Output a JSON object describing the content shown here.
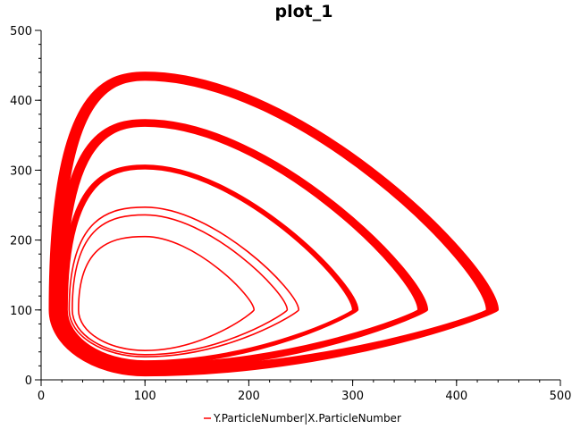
{
  "chart_data": {
    "type": "line",
    "title": "plot_1",
    "xlabel": "",
    "ylabel": "",
    "xlim": [
      0,
      500
    ],
    "ylim": [
      0,
      500
    ],
    "xticks": [
      0,
      100,
      200,
      300,
      400,
      500
    ],
    "yticks": [
      0,
      100,
      200,
      300,
      400,
      500
    ],
    "grid": false,
    "legend_position": "bottom",
    "colors": {
      "series": "#ff0000",
      "axis": "#000000"
    },
    "series": [
      {
        "name": "Y.ParticleNumber|X.ParticleNumber",
        "color": "#ff0000",
        "orbits": [
          {
            "center": [
              100,
              100
            ],
            "x_min": 36,
            "x_max": 205,
            "y_min": 42,
            "y_max": 205,
            "band": 1
          },
          {
            "center": [
              100,
              100
            ],
            "x_min": 30,
            "x_max": 237,
            "y_min": 36,
            "y_max": 236,
            "band": 1
          },
          {
            "center": [
              100,
              100
            ],
            "x_min": 27,
            "x_max": 248,
            "y_min": 33,
            "y_max": 247,
            "band": 1
          },
          {
            "center": [
              100,
              100
            ],
            "x_min": 20,
            "x_max": 305,
            "y_min": 22,
            "y_max": 307,
            "band": 5
          },
          {
            "center": [
              100,
              100
            ],
            "x_min": 14,
            "x_max": 372,
            "y_min": 14,
            "y_max": 372,
            "band": 9
          },
          {
            "center": [
              100,
              100
            ],
            "x_min": 8,
            "x_max": 440,
            "y_min": 6,
            "y_max": 440,
            "band": 11
          }
        ]
      }
    ]
  }
}
